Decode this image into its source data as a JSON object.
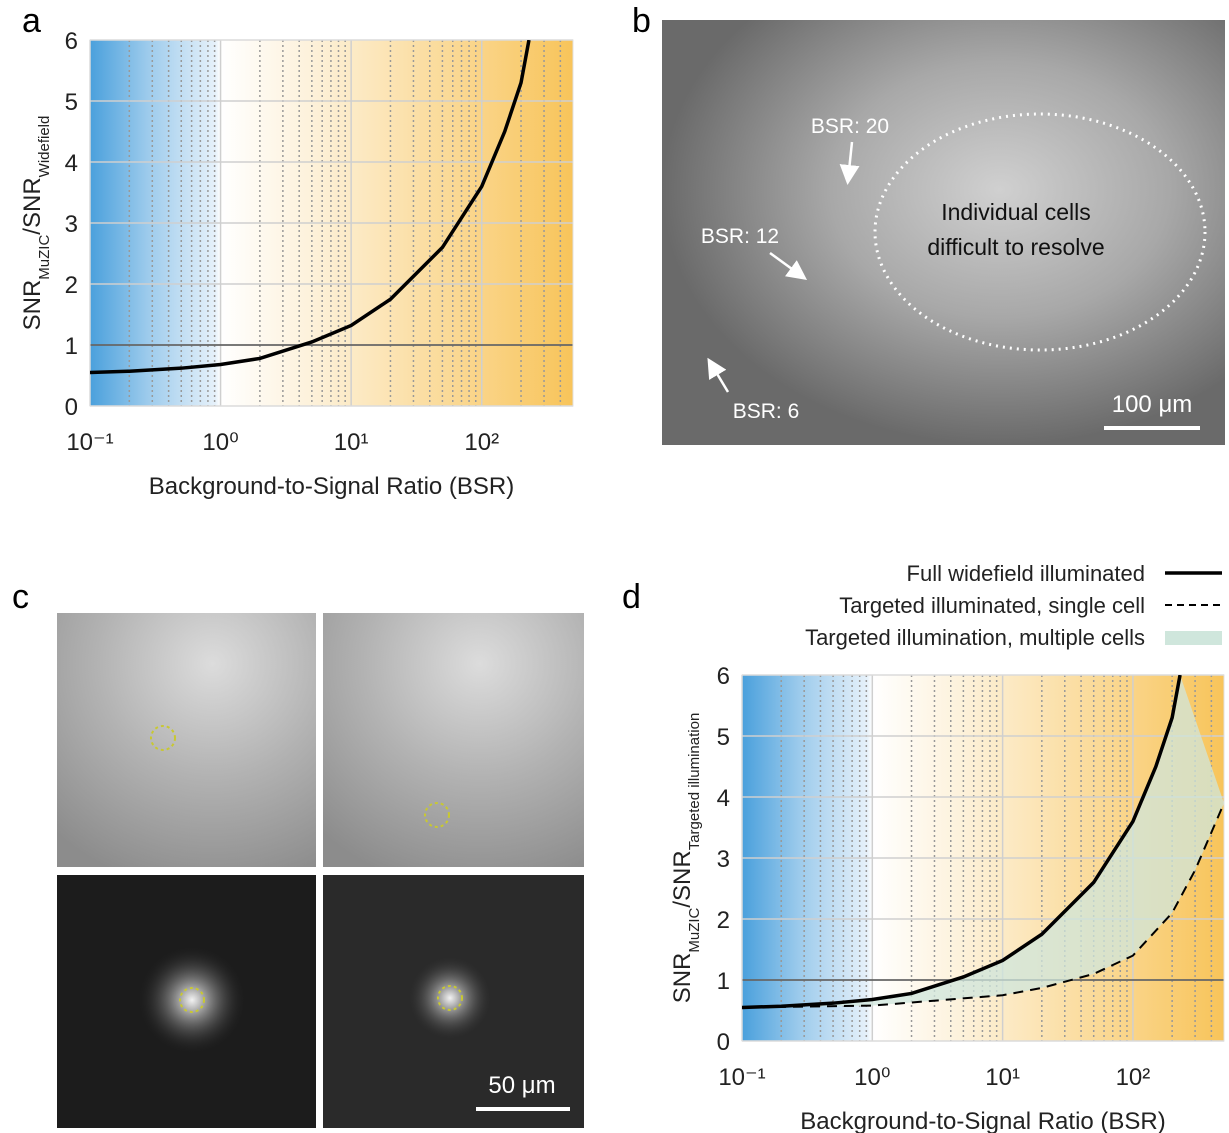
{
  "chart_data": [
    {
      "panel": "a",
      "type": "line",
      "x_label": "Background-to-Signal Ratio (BSR)",
      "y_label": [
        "SNR",
        "MuZIC",
        "/SNR",
        "Widefield"
      ],
      "xscale": "log",
      "xlim": [
        0.1,
        500
      ],
      "ylim": [
        0,
        6
      ],
      "xticks": [
        {
          "value": 0.1,
          "label": "10⁻¹"
        },
        {
          "value": 1,
          "label": "10⁰"
        },
        {
          "value": 10,
          "label": "10¹"
        },
        {
          "value": 100,
          "label": "10²"
        }
      ],
      "yticks": [
        0,
        1,
        2,
        3,
        4,
        5,
        6
      ],
      "grid": true,
      "reference_line": 1,
      "color": "#000000",
      "x": [
        0.1,
        0.2,
        0.5,
        1,
        2,
        5,
        10,
        20,
        50,
        100,
        150,
        200,
        230
      ],
      "values": [
        0.55,
        0.57,
        0.62,
        0.68,
        0.78,
        1.05,
        1.32,
        1.75,
        2.6,
        3.6,
        4.5,
        5.3,
        6.0
      ]
    },
    {
      "panel": "d",
      "type": "line",
      "x_label": "Background-to-Signal Ratio (BSR)",
      "y_label": [
        "SNR",
        "MuZIC",
        "/SNR",
        "Targeted illumination"
      ],
      "xscale": "log",
      "xlim": [
        0.1,
        500
      ],
      "ylim": [
        0,
        6
      ],
      "xticks": [
        {
          "value": 0.1,
          "label": "10⁻¹"
        },
        {
          "value": 1,
          "label": "10⁰"
        },
        {
          "value": 10,
          "label": "10¹"
        },
        {
          "value": 100,
          "label": "10²"
        }
      ],
      "yticks": [
        0,
        1,
        2,
        3,
        4,
        5,
        6
      ],
      "grid": true,
      "reference_line": 1,
      "series": [
        {
          "name": "Full widefield illuminated",
          "color": "#000000",
          "dash": false,
          "x": [
            0.1,
            0.2,
            0.5,
            1,
            2,
            5,
            10,
            20,
            50,
            100,
            150,
            200,
            230
          ],
          "values": [
            0.55,
            0.57,
            0.62,
            0.68,
            0.78,
            1.05,
            1.32,
            1.75,
            2.6,
            3.6,
            4.5,
            5.3,
            6.0
          ]
        },
        {
          "name": "Targeted illuminated, single cell",
          "color": "#000000",
          "dash": true,
          "x": [
            0.1,
            1,
            10,
            20,
            50,
            100,
            200,
            300,
            500
          ],
          "values": [
            0.55,
            0.58,
            0.75,
            0.87,
            1.1,
            1.4,
            2.1,
            2.8,
            3.9
          ]
        },
        {
          "name": "Targeted illumination, multiple cells",
          "color": "#cfe6dc",
          "fill_between": [
            0,
            1
          ]
        }
      ]
    }
  ],
  "panel_b": {
    "label": "b",
    "annotations": [
      "BSR: 20",
      "BSR: 12",
      "BSR: 6"
    ],
    "region_text": [
      "Individual cells",
      "difficult to resolve"
    ],
    "scale_bar": "100 μm"
  },
  "panel_c": {
    "label": "c",
    "scale_bar": "50 μm"
  }
}
